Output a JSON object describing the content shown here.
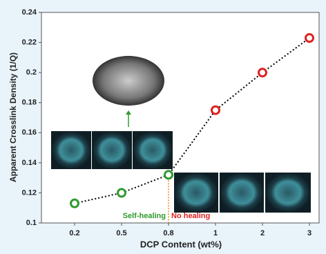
{
  "chart_data": {
    "type": "line",
    "x_label": "DCP Content (wt%)",
    "y_label": "Apparent Crosslink Density (1/Q)",
    "categories": [
      "0.2",
      "0.5",
      "0.8",
      "1",
      "2",
      "3"
    ],
    "series": [
      {
        "values": [
          0.113,
          0.12,
          0.132,
          0.175,
          0.2,
          0.223
        ],
        "color": "#000000",
        "point_colors": [
          "#2e9a2e",
          "#2e9a2e",
          "#2e9a2e",
          "#e02020",
          "#e02020",
          "#e02020"
        ]
      }
    ],
    "ylim": [
      0.1,
      0.24
    ],
    "yticks": [
      0.1,
      0.12,
      0.14,
      0.16,
      0.18,
      0.2,
      0.22,
      0.24
    ],
    "annotations": [
      {
        "text": "Self-healing",
        "color": "#2e9a2e"
      },
      {
        "text": "No healing",
        "color": "#e02020"
      }
    ]
  }
}
